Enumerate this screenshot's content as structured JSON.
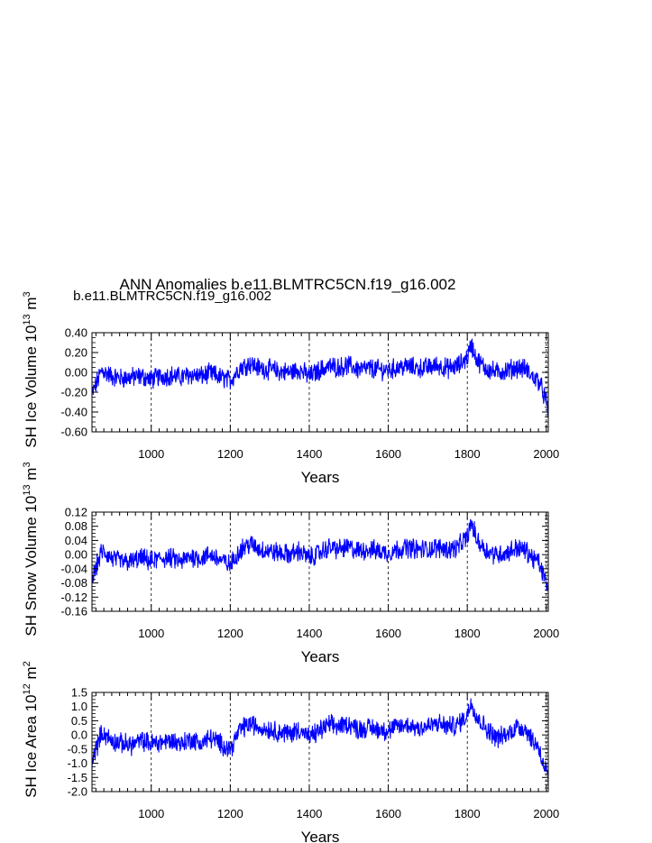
{
  "title": "ANN Anomalies b.e11.BLMTRC5CN.f19_g16.002",
  "legend_label": "b.e11.BLMTRC5CN.f19_g16.002",
  "colors": {
    "series": "#0000ff",
    "axis": "#000000",
    "refline": "#000000"
  },
  "chart_data": [
    {
      "type": "line",
      "name": "sh-ice-volume",
      "title": "",
      "xlabel": "Years",
      "ylabel": {
        "main": "SH Ice Volume 10",
        "exp1": "13",
        "unit": "m",
        "exp2": "3"
      },
      "xlim": [
        850,
        2005
      ],
      "ylim": [
        -0.6,
        0.4
      ],
      "xticks": [
        1000,
        1200,
        1400,
        1600,
        1800,
        2000
      ],
      "xticklabels": [
        "1000",
        "1200",
        "1400",
        "1600",
        "1800",
        "2000"
      ],
      "yticks": [
        -0.6,
        -0.4,
        -0.2,
        0.0,
        0.2,
        0.4
      ],
      "yticklabels": [
        "-0.60",
        "-0.40",
        "-0.20",
        "0.00",
        "0.20",
        "0.40"
      ],
      "reference_years": [
        1000,
        1200,
        1400,
        1600,
        1800,
        2000
      ],
      "series": [
        {
          "name": "b.e11.BLMTRC5CN.f19_g16.002",
          "x": [
            850,
            875,
            900,
            925,
            950,
            975,
            1000,
            1025,
            1050,
            1075,
            1100,
            1125,
            1150,
            1175,
            1200,
            1225,
            1250,
            1275,
            1300,
            1325,
            1350,
            1375,
            1400,
            1425,
            1450,
            1475,
            1500,
            1525,
            1550,
            1575,
            1600,
            1625,
            1650,
            1675,
            1700,
            1725,
            1750,
            1775,
            1800,
            1810,
            1825,
            1850,
            1875,
            1900,
            1925,
            1950,
            1965,
            1980,
            1990,
            2000,
            2005
          ],
          "values": [
            -0.22,
            0.02,
            -0.04,
            -0.06,
            -0.05,
            -0.04,
            -0.07,
            -0.04,
            -0.03,
            -0.05,
            -0.02,
            -0.04,
            -0.01,
            -0.05,
            -0.08,
            0.05,
            0.09,
            0.04,
            0.03,
            0.01,
            0.0,
            0.03,
            -0.04,
            0.02,
            0.06,
            0.05,
            0.07,
            0.03,
            0.04,
            0.03,
            0.02,
            0.05,
            0.06,
            0.04,
            0.05,
            0.07,
            0.04,
            0.06,
            0.15,
            0.28,
            0.12,
            0.03,
            0.0,
            0.02,
            0.05,
            0.03,
            -0.05,
            -0.08,
            -0.18,
            -0.3,
            -0.42
          ]
        }
      ]
    },
    {
      "type": "line",
      "name": "sh-snow-volume",
      "title": "",
      "xlabel": "Years",
      "ylabel": {
        "main": "SH Snow Volume 10",
        "exp1": "13",
        "unit": "m",
        "exp2": "3"
      },
      "xlim": [
        850,
        2005
      ],
      "ylim": [
        -0.16,
        0.12
      ],
      "xticks": [
        1000,
        1200,
        1400,
        1600,
        1800,
        2000
      ],
      "xticklabels": [
        "1000",
        "1200",
        "1400",
        "1600",
        "1800",
        "2000"
      ],
      "yticks": [
        -0.16,
        -0.12,
        -0.08,
        -0.04,
        0.0,
        0.04,
        0.08,
        0.12
      ],
      "yticklabels": [
        "-0.16",
        "-0.12",
        "-0.08",
        "-0.04",
        "0.00",
        "0.04",
        "0.08",
        "0.12"
      ],
      "reference_years": [
        1000,
        1200,
        1400,
        1600,
        1800,
        2000
      ],
      "series": [
        {
          "name": "b.e11.BLMTRC5CN.f19_g16.002",
          "x": [
            850,
            875,
            900,
            925,
            950,
            975,
            1000,
            1025,
            1050,
            1075,
            1100,
            1125,
            1150,
            1175,
            1200,
            1225,
            1250,
            1275,
            1300,
            1325,
            1350,
            1375,
            1400,
            1425,
            1450,
            1475,
            1500,
            1525,
            1550,
            1575,
            1600,
            1625,
            1650,
            1675,
            1700,
            1725,
            1750,
            1775,
            1800,
            1810,
            1825,
            1850,
            1875,
            1900,
            1925,
            1950,
            1965,
            1980,
            1990,
            2000,
            2005
          ],
          "values": [
            -0.07,
            0.01,
            -0.01,
            -0.02,
            -0.02,
            -0.01,
            -0.02,
            -0.01,
            -0.01,
            -0.02,
            -0.005,
            -0.01,
            0.0,
            -0.015,
            -0.03,
            0.015,
            0.03,
            0.015,
            0.01,
            0.005,
            0.0,
            0.01,
            -0.01,
            0.005,
            0.02,
            0.015,
            0.02,
            0.01,
            0.015,
            0.01,
            0.005,
            0.015,
            0.02,
            0.015,
            0.015,
            0.02,
            0.015,
            0.02,
            0.05,
            0.09,
            0.04,
            0.01,
            0.0,
            0.005,
            0.02,
            0.01,
            -0.01,
            -0.02,
            -0.05,
            -0.08,
            -0.12
          ]
        }
      ]
    },
    {
      "type": "line",
      "name": "sh-ice-area",
      "title": "",
      "xlabel": "Years",
      "ylabel": {
        "main": "SH Ice Area 10",
        "exp1": "12",
        "unit": "m",
        "exp2": "2"
      },
      "xlim": [
        850,
        2005
      ],
      "ylim": [
        -2.0,
        1.5
      ],
      "xticks": [
        1000,
        1200,
        1400,
        1600,
        1800,
        2000
      ],
      "xticklabels": [
        "1000",
        "1200",
        "1400",
        "1600",
        "1800",
        "2000"
      ],
      "yticks": [
        -2.0,
        -1.5,
        -1.0,
        -0.5,
        0.0,
        0.5,
        1.0,
        1.5
      ],
      "yticklabels": [
        "-2.0",
        "-1.5",
        "-1.0",
        "-0.5",
        "0.0",
        "0.5",
        "1.0",
        "1.5"
      ],
      "reference_years": [
        1000,
        1200,
        1400,
        1600,
        1800,
        2000
      ],
      "series": [
        {
          "name": "b.e11.BLMTRC5CN.f19_g16.002",
          "x": [
            850,
            875,
            900,
            925,
            950,
            975,
            1000,
            1025,
            1050,
            1075,
            1100,
            1125,
            1150,
            1175,
            1200,
            1225,
            1250,
            1275,
            1300,
            1325,
            1350,
            1375,
            1400,
            1425,
            1450,
            1475,
            1500,
            1525,
            1550,
            1575,
            1600,
            1625,
            1650,
            1675,
            1700,
            1725,
            1750,
            1775,
            1800,
            1810,
            1825,
            1850,
            1875,
            1900,
            1925,
            1950,
            1965,
            1980,
            1990,
            2000,
            2005
          ],
          "values": [
            -0.9,
            0.1,
            -0.2,
            -0.3,
            -0.35,
            -0.2,
            -0.3,
            -0.25,
            -0.2,
            -0.3,
            -0.15,
            -0.3,
            -0.1,
            -0.3,
            -0.5,
            0.2,
            0.4,
            0.25,
            0.2,
            0.1,
            0.05,
            0.2,
            -0.1,
            0.15,
            0.35,
            0.3,
            0.4,
            0.2,
            0.25,
            0.2,
            0.15,
            0.3,
            0.35,
            0.25,
            0.3,
            0.4,
            0.3,
            0.35,
            0.7,
            1.2,
            0.6,
            0.2,
            -0.1,
            0.0,
            0.3,
            0.2,
            -0.2,
            -0.4,
            -0.9,
            -1.3,
            -1.7
          ]
        }
      ]
    }
  ]
}
